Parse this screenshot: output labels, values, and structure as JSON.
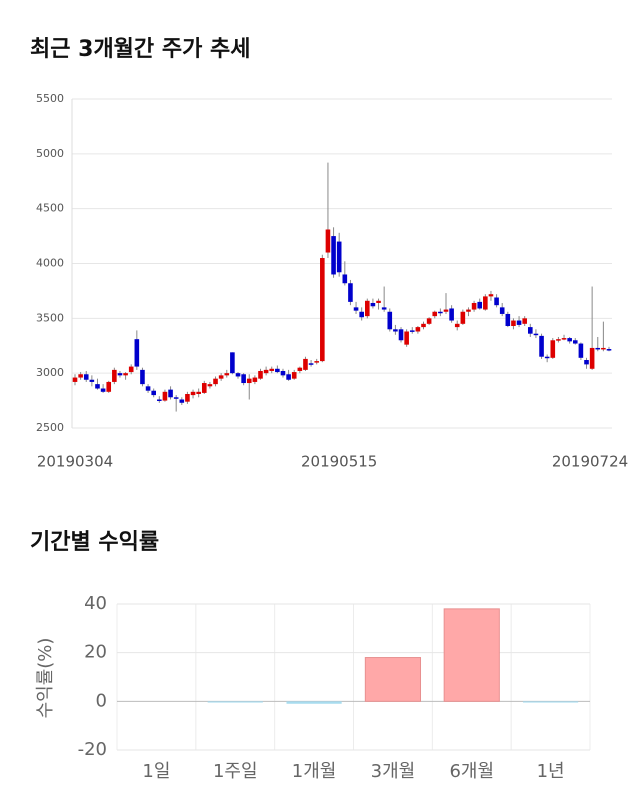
{
  "chart_data": [
    {
      "type": "candlestick",
      "title": "최근 3개월간 주가 추세",
      "categories": [
        "20190304",
        null,
        null,
        null,
        null,
        null,
        null,
        null,
        null,
        null,
        null,
        null,
        null,
        null,
        null,
        null,
        null,
        null,
        null,
        null,
        null,
        null,
        null,
        null,
        null,
        null,
        null,
        null,
        null,
        null,
        null,
        null,
        null,
        null,
        null,
        null,
        null,
        null,
        null,
        null,
        null,
        null,
        null,
        null,
        null,
        null,
        null,
        "20190515",
        null,
        null,
        null,
        null,
        null,
        null,
        null,
        null,
        null,
        null,
        null,
        null,
        null,
        null,
        null,
        null,
        null,
        null,
        null,
        null,
        null,
        null,
        null,
        null,
        null,
        null,
        null,
        null,
        null,
        null,
        null,
        null,
        null,
        null,
        null,
        null,
        null,
        null,
        null,
        null,
        null,
        null,
        null,
        null,
        null,
        null,
        null,
        "20190724"
      ],
      "open": [
        2920,
        2960,
        2990,
        2940,
        2900,
        2860,
        2830,
        2920,
        3000,
        2980,
        3010,
        3310,
        3030,
        2880,
        2840,
        2760,
        2750,
        2850,
        2780,
        2760,
        2740,
        2800,
        2810,
        2820,
        2880,
        2900,
        2950,
        2980,
        3190,
        3000,
        2990,
        2910,
        2920,
        2950,
        3000,
        3020,
        3040,
        3020,
        2990,
        2950,
        3020,
        3030,
        3090,
        3100,
        3110,
        4100,
        4250,
        4200,
        3900,
        3820,
        3600,
        3560,
        3520,
        3640,
        3640,
        3600,
        3560,
        3400,
        3400,
        3260,
        3390,
        3380,
        3420,
        3450,
        3520,
        3560,
        3560,
        3590,
        3420,
        3450,
        3560,
        3580,
        3650,
        3580,
        3700,
        3690,
        3600,
        3540,
        3430,
        3480,
        3450,
        3420,
        3360,
        3340,
        3150,
        3140,
        3300,
        3310,
        3320,
        3300,
        3270,
        3120,
        3040,
        3230,
        3220,
        3220
      ],
      "high": [
        2990,
        3010,
        3020,
        2980,
        2950,
        2900,
        2930,
        3050,
        3020,
        3010,
        3080,
        3390,
        3050,
        2900,
        2860,
        2790,
        2850,
        2880,
        2800,
        2780,
        2830,
        2850,
        2860,
        2930,
        2920,
        2970,
        3000,
        3030,
        3190,
        3010,
        3000,
        2990,
        2980,
        3040,
        3060,
        3060,
        3070,
        3040,
        3030,
        3030,
        3060,
        3150,
        3120,
        3130,
        4080,
        4920,
        4330,
        4280,
        4020,
        3850,
        3650,
        3600,
        3680,
        3680,
        3680,
        3790,
        3590,
        3440,
        3420,
        3400,
        3420,
        3430,
        3470,
        3510,
        3570,
        3590,
        3730,
        3620,
        3480,
        3580,
        3600,
        3660,
        3680,
        3720,
        3750,
        3720,
        3640,
        3560,
        3500,
        3520,
        3520,
        3450,
        3400,
        3360,
        3170,
        3320,
        3330,
        3350,
        3330,
        3320,
        3280,
        3140,
        3790,
        3330,
        3470,
        3240
      ],
      "low": [
        2890,
        2940,
        2920,
        2880,
        2850,
        2820,
        2820,
        2900,
        2960,
        2940,
        2990,
        3030,
        2880,
        2820,
        2780,
        2730,
        2740,
        2760,
        2650,
        2710,
        2720,
        2770,
        2780,
        2810,
        2860,
        2880,
        2930,
        2960,
        2990,
        2950,
        2890,
        2760,
        2900,
        2940,
        2980,
        3000,
        3000,
        2960,
        2930,
        2940,
        3000,
        3020,
        3060,
        3080,
        3100,
        4050,
        3870,
        3880,
        3800,
        3620,
        3540,
        3480,
        3500,
        3590,
        3580,
        3560,
        3380,
        3350,
        3280,
        3240,
        3360,
        3360,
        3400,
        3440,
        3500,
        3520,
        3540,
        3460,
        3390,
        3440,
        3520,
        3560,
        3580,
        3570,
        3660,
        3600,
        3520,
        3420,
        3400,
        3420,
        3430,
        3330,
        3320,
        3130,
        3100,
        3130,
        3280,
        3300,
        3270,
        3260,
        3120,
        3040,
        3030,
        3200,
        3200,
        3200
      ],
      "close": [
        2960,
        2990,
        2940,
        2920,
        2860,
        2830,
        2920,
        3030,
        2980,
        3000,
        3060,
        3060,
        2900,
        2840,
        2800,
        2750,
        2830,
        2780,
        2770,
        2730,
        2810,
        2830,
        2830,
        2910,
        2900,
        2950,
        2980,
        3000,
        3000,
        2970,
        2910,
        2950,
        2960,
        3020,
        3030,
        3040,
        3010,
        2980,
        2940,
        3010,
        3050,
        3130,
        3080,
        3110,
        4050,
        4310,
        3900,
        3920,
        3820,
        3650,
        3570,
        3510,
        3660,
        3610,
        3660,
        3580,
        3400,
        3380,
        3300,
        3380,
        3380,
        3420,
        3450,
        3500,
        3560,
        3550,
        3580,
        3480,
        3450,
        3560,
        3580,
        3640,
        3590,
        3700,
        3720,
        3620,
        3540,
        3430,
        3480,
        3440,
        3500,
        3360,
        3350,
        3150,
        3140,
        3300,
        3310,
        3320,
        3290,
        3270,
        3140,
        3080,
        3230,
        3220,
        3230,
        3210
      ],
      "up_color": "#dd0000",
      "down_color": "#0000cc",
      "ylim": [
        2500,
        5500
      ],
      "yticks": [
        2500,
        3000,
        3500,
        4000,
        4500,
        5000,
        5500
      ],
      "grid": true
    },
    {
      "type": "bar",
      "title": "기간별 수익률",
      "ylabel": "수익률(%)",
      "categories": [
        "1일",
        "1주일",
        "1개월",
        "3개월",
        "6개월",
        "1년"
      ],
      "values": [
        0,
        -0.5,
        -1,
        18,
        38,
        -0.5
      ],
      "colors": [
        "#a8dcef",
        "#a8dcef",
        "#a8dcef",
        "#ffa8a8",
        "#ffa8a8",
        "#a8dcef"
      ],
      "ylim": [
        -20,
        40
      ],
      "yticks": [
        -20,
        0,
        20,
        40
      ],
      "grid": true
    }
  ]
}
